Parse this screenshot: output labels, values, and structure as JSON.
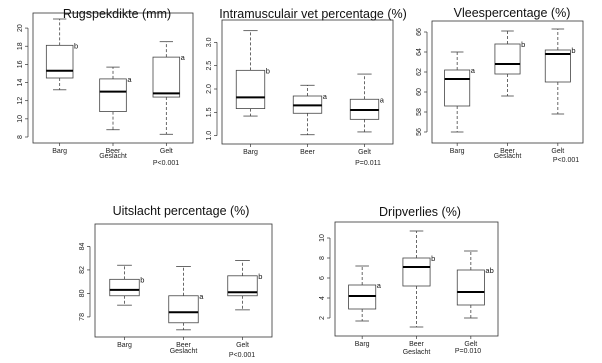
{
  "chart_data": [
    {
      "type": "boxplot",
      "title": "Rugspekdikte (mm)",
      "xlabel": "Geslacht",
      "categories": [
        "Barg",
        "Beer",
        "Gelt"
      ],
      "ylim": [
        8,
        21
      ],
      "yticks": [
        8,
        10,
        12,
        14,
        16,
        18,
        20
      ],
      "boxes": [
        {
          "min": 13.2,
          "q1": 14.5,
          "median": 15.3,
          "q3": 18.1,
          "max": 21.0,
          "letter": "b"
        },
        {
          "min": 8.8,
          "q1": 10.8,
          "median": 13.0,
          "q3": 14.4,
          "max": 15.7,
          "letter": "a"
        },
        {
          "min": 8.3,
          "q1": 12.4,
          "median": 12.8,
          "q3": 16.8,
          "max": 18.5,
          "letter": "a"
        }
      ],
      "pvalue": "P<0.001"
    },
    {
      "type": "boxplot",
      "title": "Intramusculair vet percentage (%)",
      "xlabel": "",
      "categories": [
        "Barg",
        "Beer",
        "Gelt"
      ],
      "ylim": [
        0.95,
        3.35
      ],
      "yticks": [
        1.0,
        1.5,
        2.0,
        2.5,
        3.0
      ],
      "ytick_labels": [
        "1.0",
        "1.5",
        "2.0",
        "2.5",
        "3.0"
      ],
      "boxes": [
        {
          "min": 1.42,
          "q1": 1.58,
          "median": 1.82,
          "q3": 2.4,
          "max": 3.25,
          "letter": "b"
        },
        {
          "min": 1.02,
          "q1": 1.48,
          "median": 1.65,
          "q3": 1.85,
          "max": 2.08,
          "letter": "a"
        },
        {
          "min": 1.08,
          "q1": 1.35,
          "median": 1.55,
          "q3": 1.78,
          "max": 2.32,
          "letter": "a"
        }
      ],
      "pvalue": "P=0.011"
    },
    {
      "type": "boxplot",
      "title": "Vleespercentage (%)",
      "xlabel": "Geslacht",
      "categories": [
        "Barg",
        "Beer",
        "Gelt"
      ],
      "ylim": [
        55.5,
        66.5
      ],
      "yticks": [
        56,
        58,
        60,
        62,
        64,
        66
      ],
      "boxes": [
        {
          "min": 56.0,
          "q1": 58.6,
          "median": 61.3,
          "q3": 62.2,
          "max": 64.0,
          "letter": "a"
        },
        {
          "min": 59.6,
          "q1": 61.8,
          "median": 62.8,
          "q3": 64.8,
          "max": 66.1,
          "letter": "b"
        },
        {
          "min": 57.8,
          "q1": 61.0,
          "median": 63.8,
          "q3": 64.2,
          "max": 66.3,
          "letter": "b"
        }
      ],
      "pvalue": "P<0.001"
    },
    {
      "type": "boxplot",
      "title": "Uitslacht percentage (%)",
      "xlabel": "Geslacht",
      "categories": [
        "Barg",
        "Beer",
        "Gelt"
      ],
      "ylim": [
        76.8,
        85.4
      ],
      "yticks": [
        78,
        80,
        82,
        84
      ],
      "boxes": [
        {
          "min": 79.0,
          "q1": 79.8,
          "median": 80.3,
          "q3": 81.2,
          "max": 82.4,
          "letter": "b"
        },
        {
          "min": 76.9,
          "q1": 77.5,
          "median": 78.4,
          "q3": 79.8,
          "max": 82.3,
          "letter": "a"
        },
        {
          "min": 78.6,
          "q1": 79.8,
          "median": 80.1,
          "q3": 81.5,
          "max": 82.8,
          "letter": "b"
        }
      ],
      "pvalue": "P<0.001"
    },
    {
      "type": "boxplot",
      "title": "Dripverlies (%)",
      "xlabel": "Geslacht",
      "categories": [
        "Barg",
        "Beer",
        "Gelt"
      ],
      "ylim": [
        0.8,
        11.0
      ],
      "yticks": [
        2,
        4,
        6,
        8,
        10
      ],
      "boxes": [
        {
          "min": 1.7,
          "q1": 2.9,
          "median": 4.2,
          "q3": 5.3,
          "max": 7.2,
          "letter": "a"
        },
        {
          "min": 1.1,
          "q1": 5.2,
          "median": 7.1,
          "q3": 8.0,
          "max": 10.7,
          "letter": "b"
        },
        {
          "min": 2.0,
          "q1": 3.3,
          "median": 4.6,
          "q3": 6.8,
          "max": 8.7,
          "letter": "ab"
        }
      ],
      "pvalue": "P=0.010"
    }
  ]
}
